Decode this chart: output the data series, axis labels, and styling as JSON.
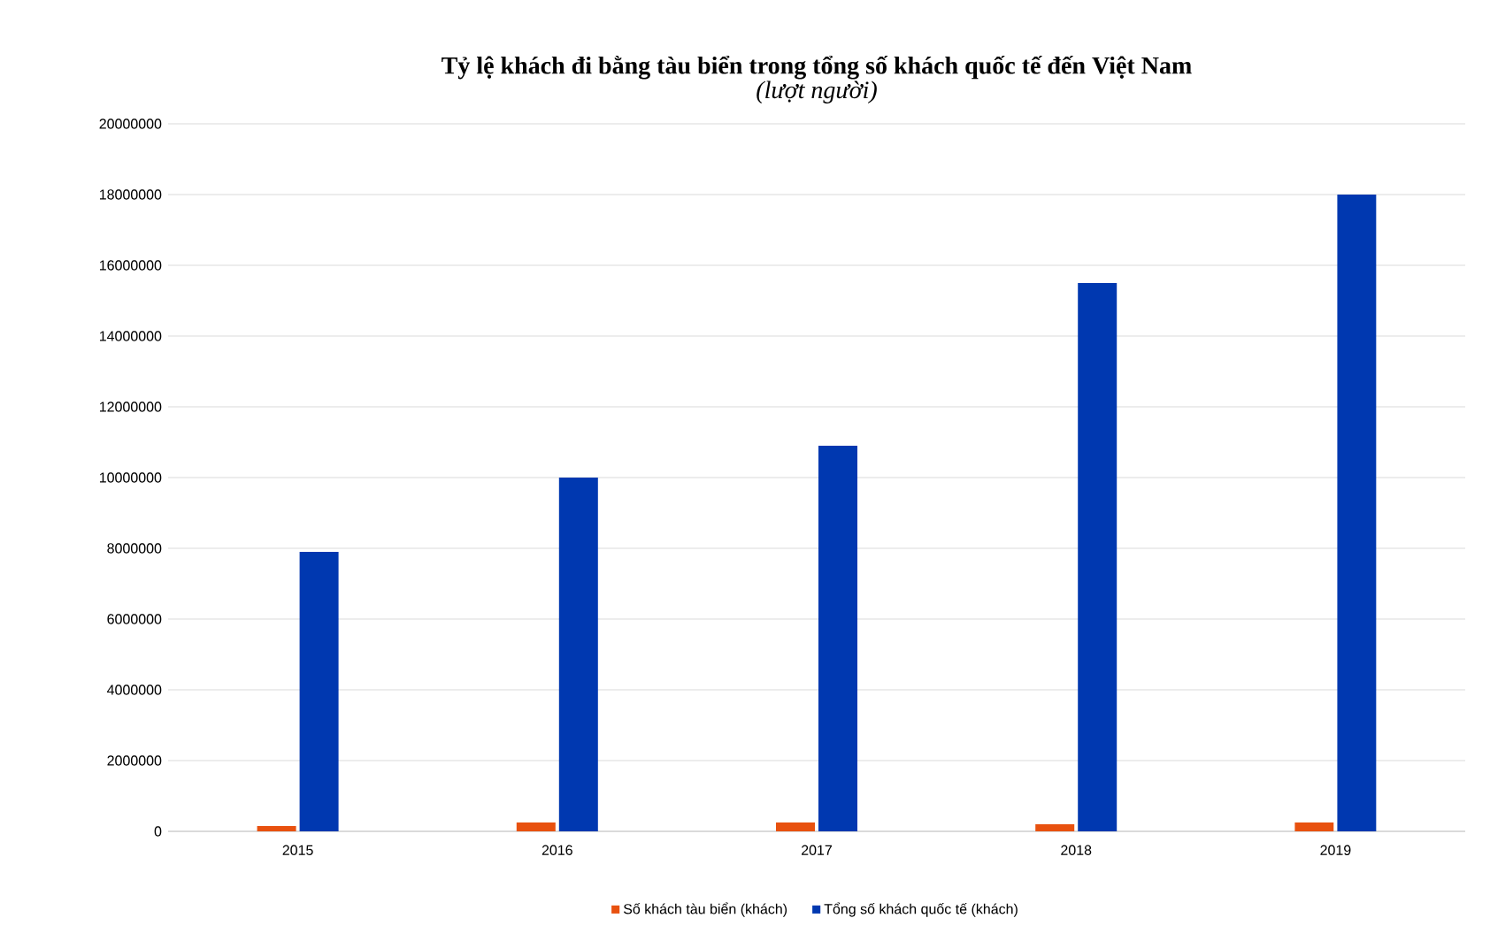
{
  "chart_data": {
    "type": "bar",
    "title": "**Tỷ lệ khách đi bằng tàu biển trong tổng số khách quốc tế đến Việt Nam**",
    "subtitle": "*(lượt người)*",
    "categories": [
      "2015",
      "2016",
      "2017",
      "2018",
      "2019"
    ],
    "series": [
      {
        "name": "Số khách tàu biển (khách)",
        "color": "#e8510f",
        "values": [
          150000,
          250000,
          250000,
          200000,
          250000
        ]
      },
      {
        "name": "Tổng số khách quốc tế (khách)",
        "color": "#0038b0",
        "values": [
          7900000,
          10000000,
          10900000,
          15500000,
          18000000
        ]
      }
    ],
    "ylim": [
      0,
      20000000
    ],
    "yticks": [
      0,
      2000000,
      4000000,
      6000000,
      8000000,
      10000000,
      12000000,
      14000000,
      16000000,
      18000000,
      20000000
    ],
    "grid": "y",
    "legend": "bottom"
  }
}
